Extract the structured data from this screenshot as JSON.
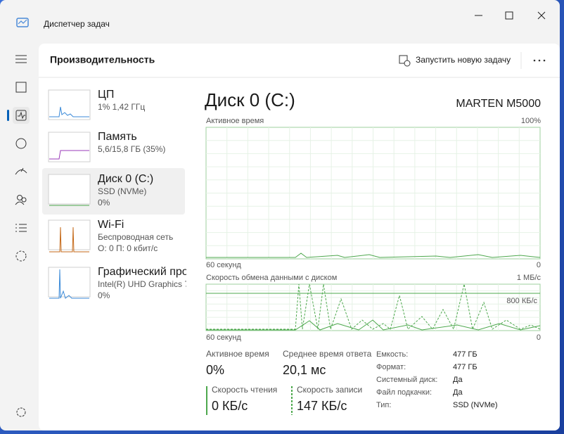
{
  "titlebar": {
    "title": "Диспетчер задач"
  },
  "header": {
    "title": "Производительность",
    "run_task": "Запустить новую задачу"
  },
  "devices": [
    {
      "name": "ЦП",
      "lines": [
        "1% 1,42 ГГц"
      ]
    },
    {
      "name": "Память",
      "lines": [
        "5,6/15,8 ГБ (35%)"
      ]
    },
    {
      "name": "Диск 0 (C:)",
      "lines": [
        "SSD (NVMe)",
        "0%"
      ]
    },
    {
      "name": "Wi-Fi",
      "lines": [
        "Беспроводная сеть",
        "О: 0 П: 0 кбит/с"
      ]
    },
    {
      "name": "Графический про",
      "lines": [
        "Intel(R) UHD Graphics 7",
        "0%"
      ]
    }
  ],
  "detail": {
    "name": "Диск 0 (C:)",
    "model": "MARTEN M5000",
    "graph1": {
      "label": "Активное время",
      "max": "100%",
      "time": "60 секунд",
      "min": "0"
    },
    "graph2": {
      "label": "Скорость обмена данными с диском",
      "max": "1 МБ/с",
      "mid": "800 КБ/с",
      "time": "60 секунд",
      "min": "0"
    },
    "stats": [
      {
        "label": "Активное время",
        "value": "0%"
      },
      {
        "label": "Среднее время ответа",
        "value": "20,1 мс"
      },
      {
        "label": "Скорость чтения",
        "value": "0 КБ/с"
      },
      {
        "label": "Скорость записи",
        "value": "147 КБ/с"
      }
    ],
    "properties": [
      {
        "label": "Емкость:",
        "value": "477 ГБ"
      },
      {
        "label": "Формат:",
        "value": "477 ГБ"
      },
      {
        "label": "Системный диск:",
        "value": "Да"
      },
      {
        "label": "Файл подкачки:",
        "value": "Да"
      },
      {
        "label": "Тип:",
        "value": "SSD (NVMe)"
      }
    ]
  }
}
